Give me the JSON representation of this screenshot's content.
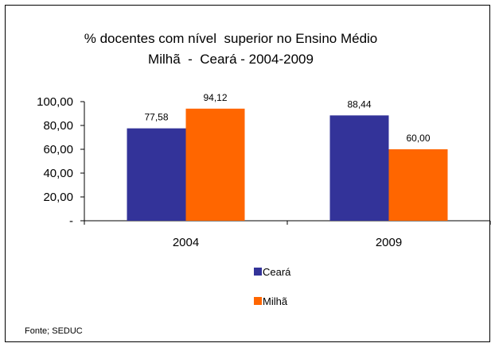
{
  "chart_data": {
    "type": "bar",
    "title": "% docentes com nível  superior no Ensino Médio",
    "subtitle": "Milhã  -  Ceará - 2004-2009",
    "categories": [
      "2004",
      "2009"
    ],
    "series": [
      {
        "name": "Ceará",
        "color": "#333399",
        "values": [
          77.58,
          88.44
        ],
        "labels": [
          "77,58",
          "88,44"
        ]
      },
      {
        "name": "Milhã",
        "color": "#FF6600",
        "values": [
          94.12,
          60.0
        ],
        "labels": [
          "94,12",
          "60,00"
        ]
      }
    ],
    "ylim": [
      0,
      100
    ],
    "yticks": [
      0,
      20,
      40,
      60,
      80,
      100
    ],
    "ytick_labels": [
      "-",
      "20,00",
      "40,00",
      "60,00",
      "80,00",
      "100,00"
    ],
    "grid": false,
    "legend": "bottom"
  },
  "source": "Fonte; SEDUC"
}
